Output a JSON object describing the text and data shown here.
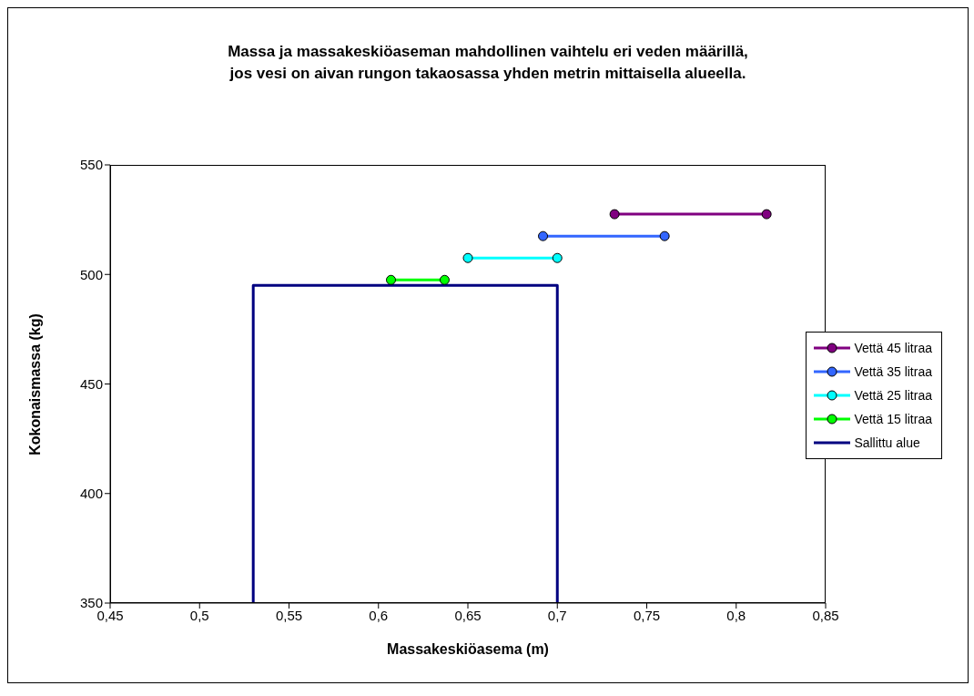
{
  "chart_data": {
    "type": "line",
    "title": "Massa ja massakeskiöaseman mahdollinen vaihtelu eri veden määrillä,\njos vesi on aivan rungon takaosassa yhden metrin mittaisella alueella.",
    "xlabel": "Massakeskiöasema (m)",
    "ylabel": "Kokonaismassa (kg)",
    "xlim": [
      0.45,
      0.85
    ],
    "xticks": [
      {
        "value": 0.45,
        "label": "0,45"
      },
      {
        "value": 0.5,
        "label": "0,5"
      },
      {
        "value": 0.55,
        "label": "0,55"
      },
      {
        "value": 0.6,
        "label": "0,6"
      },
      {
        "value": 0.65,
        "label": "0,65"
      },
      {
        "value": 0.7,
        "label": "0,7"
      },
      {
        "value": 0.75,
        "label": "0,75"
      },
      {
        "value": 0.8,
        "label": "0,8"
      },
      {
        "value": 0.85,
        "label": "0,85"
      }
    ],
    "ylim": [
      350,
      550
    ],
    "yticks": [
      350,
      400,
      450,
      500,
      550
    ],
    "grid": false,
    "legend": "right",
    "marker": "circle",
    "series": [
      {
        "name": "Vettä 45 litraa",
        "color": "#800080",
        "x": [
          0.732,
          0.817
        ],
        "values": [
          527.5,
          527.5
        ]
      },
      {
        "name": "Vettä 35 litraa",
        "color": "#3366ff",
        "x": [
          0.692,
          0.76
        ],
        "values": [
          517.5,
          517.5
        ]
      },
      {
        "name": "Vettä 25 litraa",
        "color": "#00ffff",
        "x": [
          0.65,
          0.7
        ],
        "values": [
          507.5,
          507.5
        ]
      },
      {
        "name": "Vettä 15 litraa",
        "color": "#00ff00",
        "x": [
          0.607,
          0.637
        ],
        "values": [
          497.5,
          497.5
        ]
      },
      {
        "name": "Sallittu alue",
        "color": "#000080",
        "marker": "none",
        "x": [
          0.53,
          0.53,
          0.7,
          0.7
        ],
        "values": [
          350,
          495,
          495,
          350
        ]
      }
    ]
  }
}
